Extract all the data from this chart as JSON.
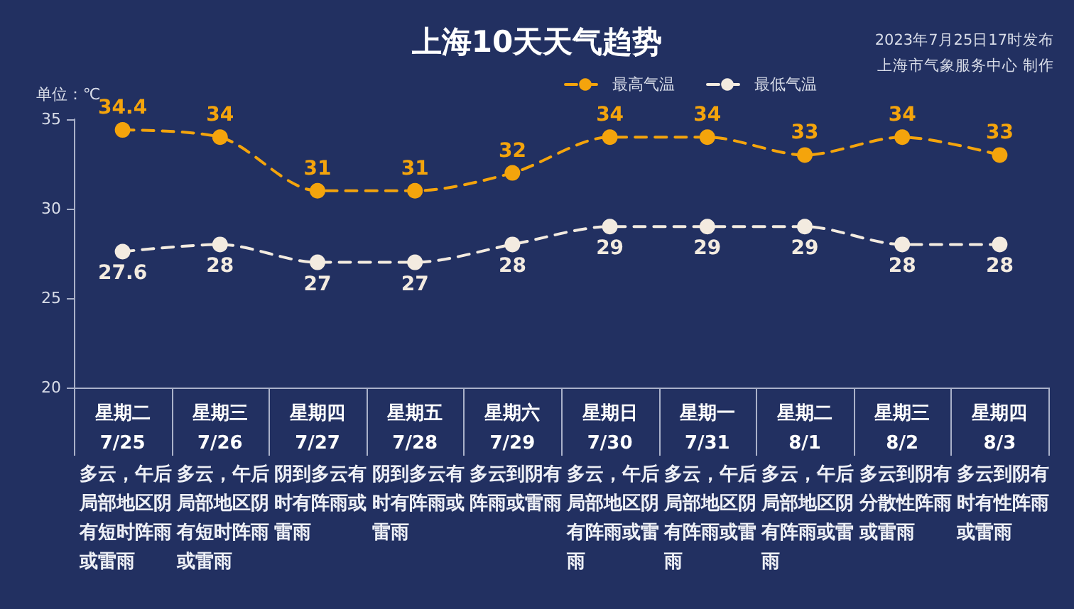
{
  "chart_data": {
    "type": "line",
    "title": "上海10天天气趋势",
    "ylabel": "单位：℃",
    "annotations": [
      "2023年7月25日17时发布",
      "上海市气象服务中心 制作",
      "多云，午后局部地区阴有短时阵雨或雷雨",
      "多云，午后局部地区阴有短时阵雨或雷雨",
      "阴到多云有时有阵雨或雷雨",
      "阴到多云有时有阵雨或雷雨",
      "多云到阴有阵雨或雷雨",
      "多云，午后局部地区阴有阵雨或雷雨",
      "多云，午后局部地区阴有阵雨或雷雨",
      "多云，午后局部地区阴有阵雨或雷雨",
      "多云到阴有分散性阵雨或雷雨",
      "多云到阴有时有性阵雨或雷雨"
    ],
    "categories": [
      "星期二\n7/25",
      "星期三\n7/26",
      "星期四\n7/27",
      "星期五\n7/28",
      "星期六\n7/29",
      "星期日\n7/30",
      "星期一\n7/31",
      "星期二\n8/1",
      "星期三\n8/2",
      "星期四\n8/3"
    ],
    "series": [
      {
        "name": "最高气温",
        "color": "#f4a40c",
        "values": [
          34.4,
          34,
          31,
          31,
          32,
          34,
          34,
          33,
          34,
          33
        ]
      },
      {
        "name": "最低气温",
        "color": "#f3ebe0",
        "values": [
          27.6,
          28,
          27,
          27,
          28,
          29,
          29,
          29,
          28,
          28
        ]
      }
    ],
    "ylim": [
      20,
      35
    ],
    "yticks": [
      20,
      25,
      30,
      35
    ],
    "grid": false,
    "legend": "top right",
    "marker": "circle",
    "line_style": "dashed",
    "data_labels": true
  }
}
